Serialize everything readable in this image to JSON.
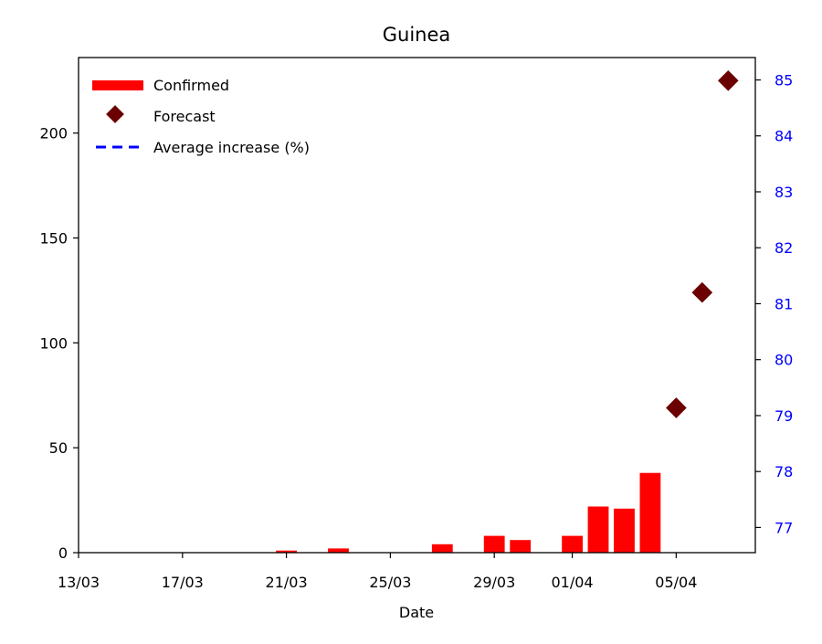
{
  "chart_data": {
    "type": "bar",
    "title": "Guinea",
    "xlabel": "Date",
    "ylabel": "",
    "y2label": "",
    "x_tick_labels": [
      "13/03",
      "17/03",
      "21/03",
      "25/03",
      "29/03",
      "01/04",
      "05/04"
    ],
    "y_ticks": [
      0,
      50,
      100,
      150,
      200
    ],
    "y2_ticks": [
      77,
      78,
      79,
      80,
      81,
      82,
      83,
      84,
      85
    ],
    "ylim": [
      0,
      236
    ],
    "y2lim": [
      76.55,
      85.4
    ],
    "legend_position": "top-left",
    "series": [
      {
        "name": "Confirmed",
        "kind": "bar",
        "color": "#ff0000",
        "x": [
          "13/03",
          "14/03",
          "15/03",
          "16/03",
          "17/03",
          "18/03",
          "19/03",
          "20/03",
          "21/03",
          "22/03",
          "23/03",
          "24/03",
          "25/03",
          "26/03",
          "27/03",
          "28/03",
          "29/03",
          "30/03",
          "31/03",
          "01/04",
          "02/04",
          "03/04",
          "04/04"
        ],
        "values": [
          0,
          0,
          0,
          0,
          0,
          0,
          0,
          0,
          1,
          0,
          2,
          0,
          0,
          0,
          4,
          0,
          8,
          6,
          0,
          8,
          22,
          21,
          38
        ]
      },
      {
        "name": "Forecast",
        "kind": "scatter",
        "color": "#6b0000",
        "x": [
          "05/04",
          "06/04",
          "07/04"
        ],
        "values": [
          69,
          124,
          225
        ]
      },
      {
        "name": "Average increase (%)",
        "kind": "line",
        "color": "#0000ff",
        "axis": "right",
        "x": [],
        "values": []
      }
    ]
  }
}
